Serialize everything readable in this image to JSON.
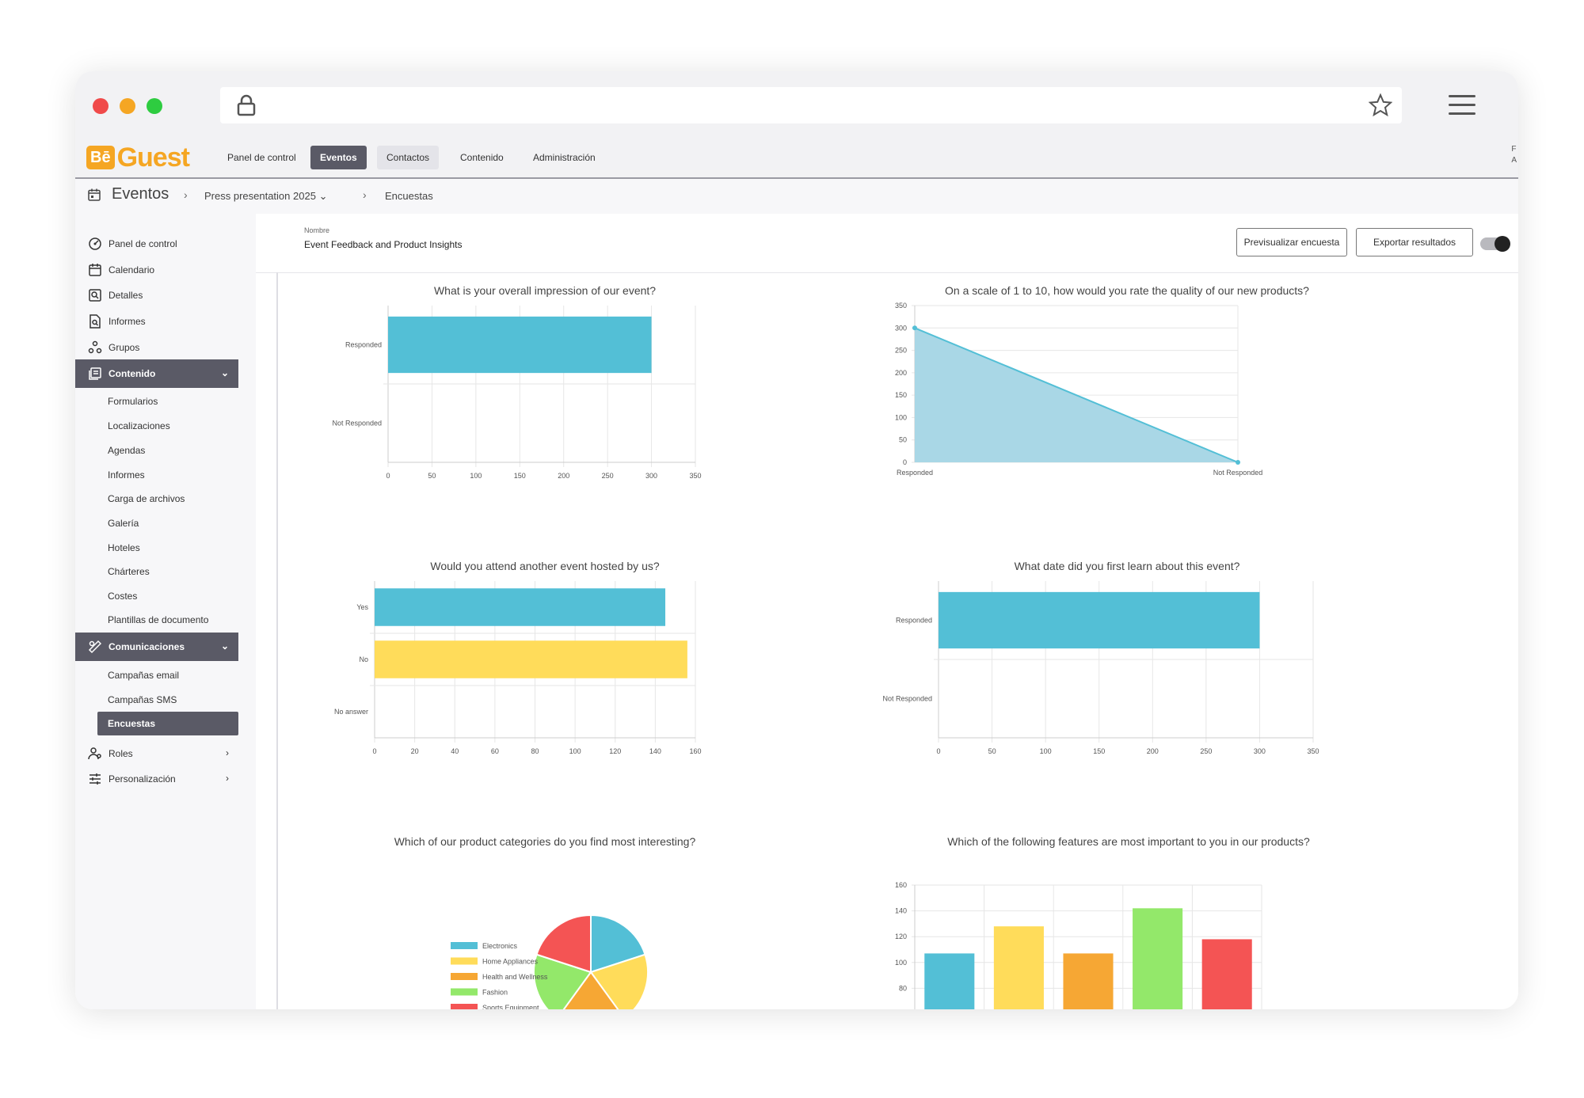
{
  "app": {
    "logo_prefix": "Bē",
    "logo_text": "Guest",
    "top_nav": [
      "Panel de control",
      "Eventos",
      "Contactos",
      "Contenido",
      "Administración"
    ],
    "top_nav_edge": "F",
    "top_nav_edge2": "A"
  },
  "breadcrumb": {
    "section": "Eventos",
    "event": "Press presentation 2025",
    "page": "Encuestas"
  },
  "sidebar": {
    "items": [
      {
        "label": "Panel de control",
        "icon": "dashboard-icon"
      },
      {
        "label": "Calendario",
        "icon": "calendar-icon"
      },
      {
        "label": "Detalles",
        "icon": "details-icon"
      },
      {
        "label": "Informes",
        "icon": "report-icon"
      },
      {
        "label": "Grupos",
        "icon": "groups-icon"
      }
    ],
    "contenido": {
      "label": "Contenido",
      "children": [
        "Formularios",
        "Localizaciones",
        "Agendas",
        "Informes",
        "Carga de archivos",
        "Galería",
        "Hoteles",
        "Chárteres",
        "Costes",
        "Plantillas de documento"
      ]
    },
    "comunicaciones": {
      "label": "Comunicaciones",
      "children": [
        "Campañas email",
        "Campañas SMS",
        "Encuestas"
      ]
    },
    "roles": "Roles",
    "personalizacion": "Personalización"
  },
  "survey": {
    "name_label": "Nombre",
    "name": "Event Feedback and Product Insights",
    "preview_button": "Previsualizar encuesta",
    "export_button": "Exportar resultados"
  },
  "colors": {
    "blue": "#53bfd6",
    "yellow": "#ffdc5a",
    "orange": "#f6a734",
    "green": "#93e86a",
    "red": "#f45454",
    "area": "#a9d7e6",
    "accent": "#5a5a66"
  },
  "chart_data": [
    {
      "type": "bar",
      "orientation": "horizontal",
      "title": "What is your overall impression of our event?",
      "categories": [
        "Responded",
        "Not Responded"
      ],
      "values": [
        300,
        0
      ],
      "xlim": [
        0,
        350
      ],
      "ticks": [
        "0",
        "50",
        "100",
        "150",
        "200",
        "250",
        "300",
        "350"
      ]
    },
    {
      "type": "area",
      "title": "On a scale of 1 to 10, how would you rate the quality of our new products?",
      "categories": [
        "Responded",
        "Not Responded"
      ],
      "values": [
        300,
        0
      ],
      "ylim": [
        0,
        350
      ],
      "ticks": [
        "0",
        "50",
        "100",
        "150",
        "200",
        "250",
        "300",
        "350"
      ]
    },
    {
      "type": "bar",
      "orientation": "horizontal",
      "title": "Would you attend another event hosted by us?",
      "categories": [
        "Yes",
        "No",
        "No answer"
      ],
      "values": [
        145,
        156,
        0
      ],
      "xlim": [
        0,
        160
      ],
      "ticks": [
        "0",
        "20",
        "40",
        "60",
        "80",
        "100",
        "120",
        "140",
        "160"
      ]
    },
    {
      "type": "bar",
      "orientation": "horizontal",
      "title": "What date did you first learn about this event?",
      "categories": [
        "Responded",
        "Not Responded"
      ],
      "values": [
        300,
        0
      ],
      "xlim": [
        0,
        350
      ],
      "ticks": [
        "0",
        "50",
        "100",
        "150",
        "200",
        "250",
        "300",
        "350"
      ]
    },
    {
      "type": "pie",
      "title": "Which of our product categories do you find most interesting?",
      "categories": [
        "Electronics",
        "Home Appliances",
        "Health and Wellness",
        "Fashion",
        "Sports Equipment"
      ],
      "values": [
        20,
        20,
        20,
        20,
        20
      ],
      "legend": "left"
    },
    {
      "type": "bar",
      "orientation": "vertical",
      "title": "Which of the following features are most important to you in our products?",
      "values": [
        107,
        128,
        107,
        142,
        118
      ],
      "ylim": [
        0,
        160
      ],
      "ticks": [
        "80",
        "80",
        "100",
        "120",
        "140",
        "160"
      ]
    }
  ]
}
